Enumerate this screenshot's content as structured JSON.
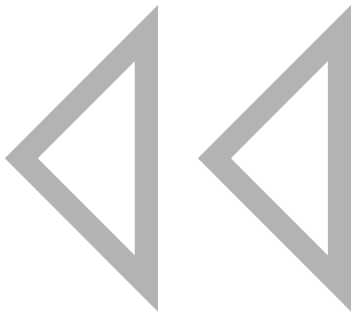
{
  "control": {
    "name": "rewind",
    "icon": "double-left-triangle-outline-icon",
    "color": "#b3b3b4",
    "background": "#ffffff"
  }
}
